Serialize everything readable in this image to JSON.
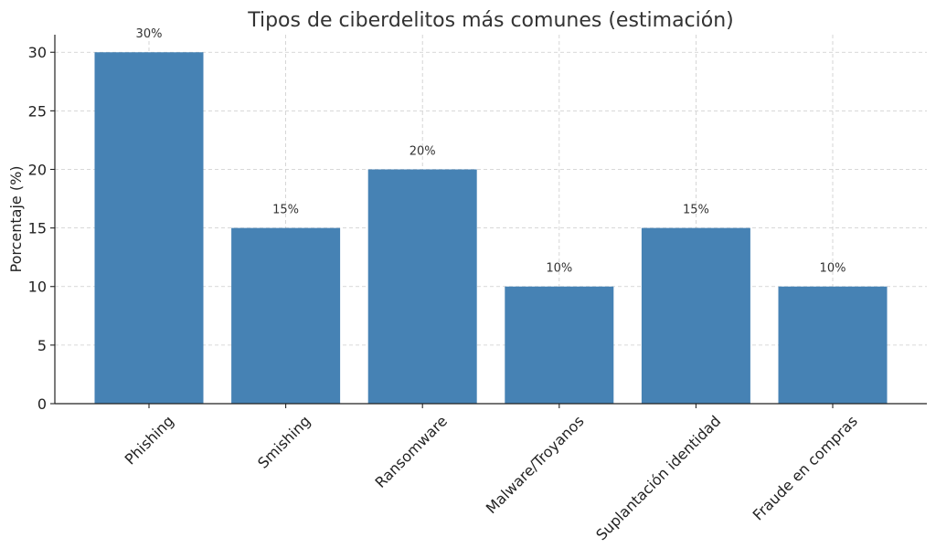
{
  "chart_data": {
    "type": "bar",
    "title": "Tipos de ciberdelitos más comunes (estimación)",
    "xlabel": "",
    "ylabel": "Porcentaje (%)",
    "categories": [
      "Phishing",
      "Smishing",
      "Ransomware",
      "Malware/Troyanos",
      "Suplantación identidad",
      "Fraude en compras"
    ],
    "values": [
      30,
      15,
      20,
      10,
      15,
      10
    ],
    "data_labels": [
      "30%",
      "15%",
      "20%",
      "10%",
      "15%",
      "10%"
    ],
    "yticks": [
      0,
      5,
      10,
      15,
      20,
      25,
      30
    ],
    "ylim": [
      0,
      31.5
    ],
    "grid": true,
    "bar_color": "#4682b4"
  }
}
